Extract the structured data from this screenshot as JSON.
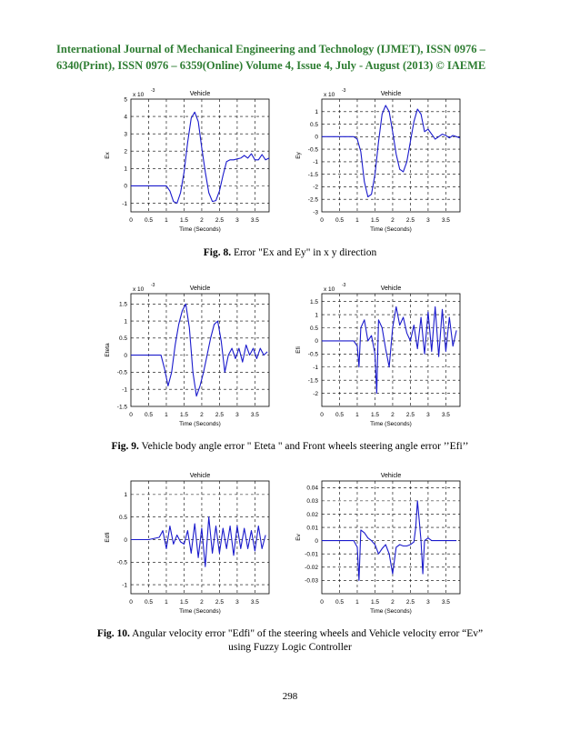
{
  "header": {
    "line1": "International Journal of Mechanical Engineering and Technology (IJMET), ISSN 0976 –",
    "line2": "6340(Print), ISSN 0976 – 6359(Online) Volume 4, Issue 4, July - August (2013) © IAEME"
  },
  "captions": {
    "fig8_label": "Fig. 8.",
    "fig8_text": " Error \"Ex and Ey\" in x y direction",
    "fig9_label": "Fig. 9.",
    "fig9_text": " Vehicle body angle error \" Eteta \" and Front wheels steering angle error ’’Efi’’",
    "fig10_label": "Fig. 10.",
    "fig10_text": " Angular velocity error \"Edfi\" of the steering wheels and Vehicle velocity error “Ev” using Fuzzy Logic Controller"
  },
  "page_number": "298",
  "chart_data": [
    {
      "id": "ex",
      "type": "line",
      "title": "Vehicle",
      "xlabel": "Time (Seconds)",
      "ylabel": "Ex",
      "multiplier": "x 10",
      "exponent": "-3",
      "xlim": [
        0,
        3.9
      ],
      "ylim": [
        -1.5,
        5.0
      ],
      "xticks": [
        "0",
        "0.5",
        "1",
        "1.5",
        "2",
        "2.5",
        "3",
        "3.5"
      ],
      "yticks": [
        "-1",
        "0",
        "1",
        "2",
        "3",
        "4",
        "5"
      ],
      "x": [
        0,
        0.5,
        0.9,
        1.0,
        1.1,
        1.2,
        1.3,
        1.4,
        1.5,
        1.6,
        1.7,
        1.8,
        1.9,
        2.0,
        2.1,
        2.2,
        2.3,
        2.4,
        2.5,
        2.6,
        2.7,
        2.8,
        2.9,
        3.0,
        3.1,
        3.2,
        3.3,
        3.4,
        3.5,
        3.6,
        3.7,
        3.8,
        3.9
      ],
      "y": [
        0,
        0,
        0,
        0,
        -0.3,
        -0.9,
        -1.0,
        -0.4,
        0.8,
        2.5,
        3.9,
        4.25,
        3.7,
        2.2,
        0.8,
        -0.4,
        -0.9,
        -0.85,
        -0.3,
        0.6,
        1.4,
        1.5,
        1.5,
        1.55,
        1.6,
        1.75,
        1.6,
        1.85,
        1.5,
        1.5,
        1.8,
        1.5,
        1.6
      ]
    },
    {
      "id": "ey",
      "type": "line",
      "title": "Vehicle",
      "xlabel": "Time (Seconds)",
      "ylabel": "Ey",
      "multiplier": "x 10",
      "exponent": "-3",
      "xlim": [
        0,
        3.9
      ],
      "ylim": [
        -3.0,
        1.5
      ],
      "xticks": [
        "0",
        "0.5",
        "1",
        "1.5",
        "2",
        "2.5",
        "3",
        "3.5"
      ],
      "yticks": [
        "-3",
        "-2.5",
        "-2",
        "-1.5",
        "-1",
        "-0.5",
        "0",
        "0.5",
        "1"
      ],
      "x": [
        0,
        0.5,
        0.9,
        1.0,
        1.1,
        1.2,
        1.3,
        1.4,
        1.5,
        1.6,
        1.7,
        1.8,
        1.9,
        2.0,
        2.1,
        2.2,
        2.3,
        2.4,
        2.5,
        2.6,
        2.7,
        2.8,
        2.9,
        3.0,
        3.1,
        3.2,
        3.3,
        3.4,
        3.5,
        3.6,
        3.7,
        3.8,
        3.9
      ],
      "y": [
        0,
        0,
        0,
        -0.1,
        -0.6,
        -1.8,
        -2.4,
        -2.3,
        -1.5,
        -0.2,
        0.9,
        1.25,
        1.0,
        0.2,
        -0.7,
        -1.3,
        -1.4,
        -1.0,
        -0.2,
        0.6,
        1.1,
        0.9,
        0.2,
        0.3,
        0.1,
        -0.1,
        0.0,
        0.1,
        0.05,
        -0.05,
        0.05,
        0.0,
        -0.05
      ]
    },
    {
      "id": "eteta",
      "type": "line",
      "title": "Vehicle",
      "xlabel": "Time (Seconds)",
      "ylabel": "Eteta",
      "multiplier": "x 10",
      "exponent": "-3",
      "xlim": [
        0,
        3.9
      ],
      "ylim": [
        -1.5,
        1.8
      ],
      "xticks": [
        "0",
        "0.5",
        "1",
        "1.5",
        "2",
        "2.5",
        "3",
        "3.5"
      ],
      "yticks": [
        "-1.5",
        "-1",
        "-0.5",
        "0",
        "0.5",
        "1",
        "1.5"
      ],
      "x": [
        0,
        0.5,
        0.85,
        0.95,
        1.05,
        1.15,
        1.25,
        1.35,
        1.45,
        1.55,
        1.65,
        1.75,
        1.85,
        1.95,
        2.05,
        2.15,
        2.25,
        2.35,
        2.45,
        2.55,
        2.65,
        2.75,
        2.85,
        2.95,
        3.05,
        3.15,
        3.25,
        3.35,
        3.45,
        3.55,
        3.65,
        3.75,
        3.85
      ],
      "y": [
        0,
        0,
        0,
        -0.4,
        -0.9,
        -0.5,
        0.3,
        0.9,
        1.3,
        1.5,
        0.8,
        -0.5,
        -1.2,
        -0.9,
        -0.5,
        0.0,
        0.5,
        0.9,
        1.0,
        0.4,
        -0.5,
        0.0,
        0.2,
        -0.1,
        0.2,
        -0.2,
        0.3,
        0.0,
        0.2,
        -0.1,
        0.2,
        0.0,
        0.1
      ]
    },
    {
      "id": "efi",
      "type": "line",
      "title": "Vehicle",
      "xlabel": "Time (Seconds)",
      "ylabel": "Efi",
      "multiplier": "x 10",
      "exponent": "-3",
      "xlim": [
        0,
        3.9
      ],
      "ylim": [
        -2.5,
        1.8
      ],
      "xticks": [
        "0",
        "0.5",
        "1",
        "1.5",
        "2",
        "2.5",
        "3",
        "3.5"
      ],
      "yticks": [
        "-2",
        "-1.5",
        "-1",
        "-0.5",
        "0",
        "0.5",
        "1",
        "1.5"
      ],
      "x": [
        0,
        0.5,
        0.9,
        1.0,
        1.05,
        1.1,
        1.2,
        1.3,
        1.4,
        1.5,
        1.55,
        1.6,
        1.7,
        1.8,
        1.9,
        2.0,
        2.1,
        2.2,
        2.3,
        2.4,
        2.5,
        2.6,
        2.7,
        2.8,
        2.9,
        3.0,
        3.1,
        3.2,
        3.3,
        3.4,
        3.5,
        3.6,
        3.7,
        3.8
      ],
      "y": [
        0,
        0,
        0,
        -0.2,
        -1.0,
        0.5,
        0.8,
        0.0,
        0.2,
        -0.5,
        -2.0,
        0.8,
        0.5,
        -0.3,
        -1.0,
        0.5,
        1.3,
        0.6,
        0.9,
        0.3,
        0.0,
        0.6,
        -0.3,
        0.9,
        -0.5,
        1.1,
        -0.4,
        1.3,
        -0.6,
        1.2,
        -0.4,
        0.9,
        -0.2,
        0.4
      ]
    },
    {
      "id": "edfi",
      "type": "line",
      "title": "Vehicle",
      "xlabel": "Time (Seconds)",
      "ylabel": "Edfi",
      "multiplier": "",
      "exponent": "",
      "xlim": [
        0,
        3.9
      ],
      "ylim": [
        -1.2,
        1.3
      ],
      "xticks": [
        "0",
        "0.5",
        "1",
        "1.5",
        "2",
        "2.5",
        "3",
        "3.5"
      ],
      "yticks": [
        "-1",
        "-0.5",
        "0",
        "0.5",
        "1"
      ],
      "x": [
        0,
        0.5,
        0.8,
        0.9,
        1.0,
        1.1,
        1.2,
        1.3,
        1.4,
        1.5,
        1.6,
        1.7,
        1.8,
        1.9,
        2.0,
        2.1,
        2.2,
        2.3,
        2.4,
        2.5,
        2.6,
        2.7,
        2.8,
        2.9,
        3.0,
        3.1,
        3.2,
        3.3,
        3.4,
        3.5,
        3.6,
        3.7,
        3.8
      ],
      "y": [
        0,
        0,
        0.05,
        0.2,
        -0.2,
        0.3,
        -0.1,
        0.1,
        -0.05,
        -0.1,
        0.2,
        -0.3,
        0.35,
        -0.4,
        0.25,
        -0.6,
        0.5,
        -0.3,
        0.3,
        -0.3,
        0.25,
        -0.2,
        0.3,
        -0.35,
        0.3,
        -0.2,
        0.25,
        -0.2,
        0.2,
        -0.25,
        0.3,
        -0.2,
        0.1
      ]
    },
    {
      "id": "ev",
      "type": "line",
      "title": "Vehicle",
      "xlabel": "Time (Seconds)",
      "ylabel": "Ev",
      "multiplier": "",
      "exponent": "",
      "xlim": [
        0,
        3.9
      ],
      "ylim": [
        -0.04,
        0.045
      ],
      "xticks": [
        "0",
        "0.5",
        "1",
        "1.5",
        "2",
        "2.5",
        "3",
        "3.5"
      ],
      "yticks": [
        "-0.03",
        "-0.02",
        "-0.01",
        "0",
        "0.01",
        "0.02",
        "0.03",
        "0.04"
      ],
      "x": [
        0,
        0.5,
        0.9,
        1.0,
        1.05,
        1.1,
        1.2,
        1.3,
        1.4,
        1.5,
        1.6,
        1.7,
        1.8,
        1.9,
        2.0,
        2.1,
        2.2,
        2.3,
        2.4,
        2.5,
        2.6,
        2.65,
        2.7,
        2.75,
        2.8,
        2.85,
        2.9,
        3.0,
        3.1,
        3.2,
        3.3,
        3.4,
        3.5,
        3.6,
        3.7,
        3.8
      ],
      "y": [
        0,
        0,
        0,
        -0.005,
        -0.03,
        0.008,
        0.006,
        0.002,
        0.0,
        -0.003,
        -0.01,
        -0.006,
        -0.003,
        -0.01,
        -0.025,
        -0.005,
        -0.003,
        -0.004,
        -0.004,
        -0.003,
        -0.001,
        0.01,
        0.03,
        0.015,
        0.0,
        -0.025,
        0.0,
        0.002,
        0.0,
        0.0,
        0.0,
        0.0,
        0.0,
        0.0,
        0.0,
        0.0
      ]
    }
  ]
}
